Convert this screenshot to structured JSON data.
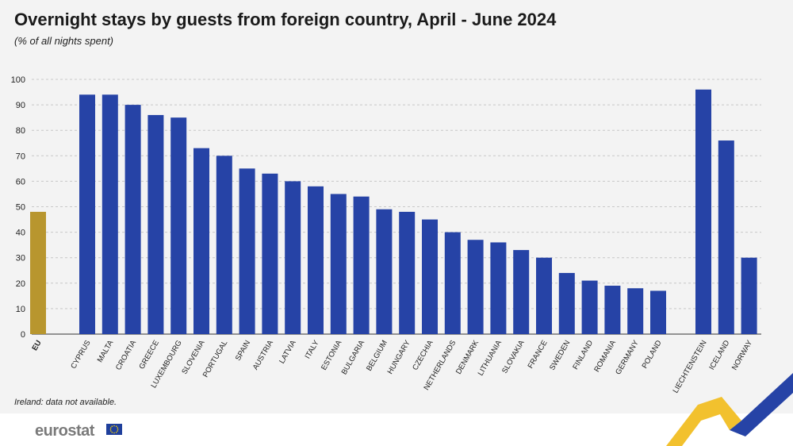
{
  "title": "Overnight stays by guests from foreign country, April - June 2024",
  "subtitle": "(% of all nights spent)",
  "footnote": "Ireland: data not available.",
  "logo_text": "eurostat",
  "colors": {
    "eu": "#b8962e",
    "country": "#2643a6",
    "grid": "#c8c8c8",
    "deco_yellow": "#f2c12e",
    "deco_blue": "#2643a6"
  },
  "chart_data": {
    "type": "bar",
    "categories": [
      "EU",
      "Cyprus",
      "Malta",
      "Croatia",
      "Greece",
      "Luxembourg",
      "Slovenia",
      "Portugal",
      "Spain",
      "Austria",
      "Latvia",
      "Italy",
      "Estonia",
      "Bulgaria",
      "Belgium",
      "Hungary",
      "Czechia",
      "Netherlands",
      "Denmark",
      "Lithuania",
      "Slovakia",
      "France",
      "Sweden",
      "Finland",
      "Romania",
      "Germany",
      "Poland",
      "Liechtenstein",
      "Iceland",
      "Norway"
    ],
    "values": [
      48,
      94,
      94,
      90,
      86,
      85,
      73,
      70,
      65,
      63,
      60,
      58,
      55,
      54,
      49,
      48,
      45,
      40,
      37,
      36,
      33,
      30,
      24,
      21,
      19,
      18,
      17,
      96,
      76,
      30
    ],
    "ylim": [
      0,
      100
    ],
    "yticks": [
      "0",
      "10",
      "20",
      "30",
      "40",
      "50",
      "60",
      "70",
      "80",
      "90",
      "100"
    ],
    "grid": true,
    "xlabel": "",
    "ylabel": ""
  }
}
